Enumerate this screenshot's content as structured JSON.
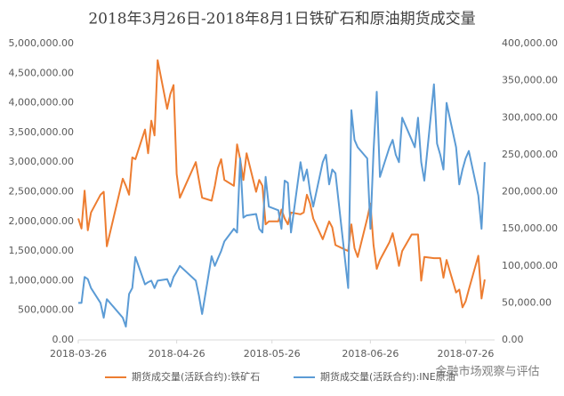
{
  "chart_data": {
    "type": "line",
    "title": "2018年3月26日-2018年8月1日铁矿石和原油期货成交量",
    "annotation": "金融市场观察与评估",
    "x": [
      "2018-03-26",
      "2018-03-27",
      "2018-03-28",
      "2018-03-29",
      "2018-03-30",
      "2018-04-02",
      "2018-04-03",
      "2018-04-04",
      "2018-04-09",
      "2018-04-10",
      "2018-04-11",
      "2018-04-12",
      "2018-04-13",
      "2018-04-16",
      "2018-04-17",
      "2018-04-18",
      "2018-04-19",
      "2018-04-20",
      "2018-04-23",
      "2018-04-24",
      "2018-04-25",
      "2018-04-26",
      "2018-04-27",
      "2018-05-02",
      "2018-05-03",
      "2018-05-04",
      "2018-05-07",
      "2018-05-08",
      "2018-05-09",
      "2018-05-10",
      "2018-05-11",
      "2018-05-14",
      "2018-05-15",
      "2018-05-16",
      "2018-05-17",
      "2018-05-18",
      "2018-05-21",
      "2018-05-22",
      "2018-05-23",
      "2018-05-24",
      "2018-05-25",
      "2018-05-28",
      "2018-05-29",
      "2018-05-30",
      "2018-05-31",
      "2018-06-01",
      "2018-06-04",
      "2018-06-05",
      "2018-06-06",
      "2018-06-07",
      "2018-06-08",
      "2018-06-11",
      "2018-06-12",
      "2018-06-13",
      "2018-06-14",
      "2018-06-15",
      "2018-06-19",
      "2018-06-20",
      "2018-06-21",
      "2018-06-22",
      "2018-06-25",
      "2018-06-26",
      "2018-06-27",
      "2018-06-28",
      "2018-06-29",
      "2018-07-02",
      "2018-07-03",
      "2018-07-04",
      "2018-07-05",
      "2018-07-06",
      "2018-07-09",
      "2018-07-10",
      "2018-07-11",
      "2018-07-12",
      "2018-07-13",
      "2018-07-16",
      "2018-07-17",
      "2018-07-18",
      "2018-07-19",
      "2018-07-20",
      "2018-07-23",
      "2018-07-24",
      "2018-07-25",
      "2018-07-26",
      "2018-07-27",
      "2018-07-30",
      "2018-07-31",
      "2018-08-01"
    ],
    "series": [
      {
        "name": "期货成交量(活跃合约):铁矿石",
        "color": "#ed7d31",
        "values": [
          2050000,
          1880000,
          2520000,
          1850000,
          2150000,
          2450000,
          2500000,
          1580000,
          2720000,
          2600000,
          2450000,
          3080000,
          3050000,
          3550000,
          3150000,
          3700000,
          3450000,
          4720000,
          3900000,
          4150000,
          4300000,
          2800000,
          2400000,
          3000000,
          2700000,
          2400000,
          2350000,
          2600000,
          2900000,
          3050000,
          2700000,
          2600000,
          3300000,
          3050000,
          2700000,
          3150000,
          2500000,
          2700000,
          2600000,
          1950000,
          2000000,
          2000000,
          2200000,
          2050000,
          1950000,
          2150000,
          2120000,
          2150000,
          2450000,
          2300000,
          2050000,
          1700000,
          1850000,
          2000000,
          1900000,
          1600000,
          1500000,
          1950000,
          1550000,
          1400000,
          2050000,
          2300000,
          1600000,
          1200000,
          1350000,
          1650000,
          1800000,
          1550000,
          1250000,
          1500000,
          1780000,
          1780000,
          1780000,
          1000000,
          1400000,
          1380000,
          1380000,
          1380000,
          1050000,
          1350000,
          800000,
          850000,
          550000,
          650000,
          850000,
          1420000,
          700000,
          1020000
        ]
      },
      {
        "name": "期货成交量(活跃合约):INE原油",
        "color": "#5b9bd5",
        "axis": "y2",
        "values": [
          50000,
          50000,
          85000,
          82000,
          70000,
          50000,
          30000,
          55000,
          30000,
          18000,
          62000,
          70000,
          112000,
          75000,
          78000,
          80000,
          70000,
          80000,
          82000,
          72000,
          85000,
          92000,
          100000,
          80000,
          60000,
          35000,
          113000,
          100000,
          110000,
          120000,
          133000,
          150000,
          145000,
          245000,
          165000,
          168000,
          170000,
          150000,
          145000,
          220000,
          180000,
          175000,
          150000,
          215000,
          212000,
          145000,
          240000,
          215000,
          230000,
          200000,
          180000,
          240000,
          250000,
          210000,
          230000,
          225000,
          70000,
          310000,
          270000,
          260000,
          245000,
          150000,
          255000,
          335000,
          220000,
          260000,
          270000,
          250000,
          240000,
          300000,
          270000,
          260000,
          300000,
          240000,
          215000,
          345000,
          265000,
          250000,
          230000,
          320000,
          260000,
          210000,
          230000,
          245000,
          255000,
          195000,
          150000,
          240000
        ]
      }
    ],
    "xlim": [
      "2018-03-26",
      "2018-08-03"
    ],
    "xticks": [
      "2018-03-26",
      "2018-04-26",
      "2018-05-26",
      "2018-06-26",
      "2018-07-26"
    ],
    "ylim": [
      0,
      5000000
    ],
    "yticks": [
      {
        "value": 0,
        "label": "0.00"
      },
      {
        "value": 500000,
        "label": "500,000.00"
      },
      {
        "value": 1000000,
        "label": "1,000,000.00"
      },
      {
        "value": 1500000,
        "label": "1,500,000.00"
      },
      {
        "value": 2000000,
        "label": "2,000,000.00"
      },
      {
        "value": 2500000,
        "label": "2,500,000.00"
      },
      {
        "value": 3000000,
        "label": "3,000,000.00"
      },
      {
        "value": 3500000,
        "label": "3,500,000.00"
      },
      {
        "value": 4000000,
        "label": "4,000,000.00"
      },
      {
        "value": 4500000,
        "label": "4,500,000.00"
      },
      {
        "value": 5000000,
        "label": "5,000,000.00"
      }
    ],
    "y2lim": [
      0,
      400000
    ],
    "y2ticks": [
      {
        "value": 0,
        "label": "0.00"
      },
      {
        "value": 50000,
        "label": "50,000.00"
      },
      {
        "value": 100000,
        "label": "100,000.00"
      },
      {
        "value": 150000,
        "label": "150,000.00"
      },
      {
        "value": 200000,
        "label": "200,000.00"
      },
      {
        "value": 250000,
        "label": "250,000.00"
      },
      {
        "value": 300000,
        "label": "300,000.00"
      },
      {
        "value": 350000,
        "label": "350,000.00"
      },
      {
        "value": 400000,
        "label": "400,000.00"
      }
    ],
    "legend": "bottom"
  }
}
